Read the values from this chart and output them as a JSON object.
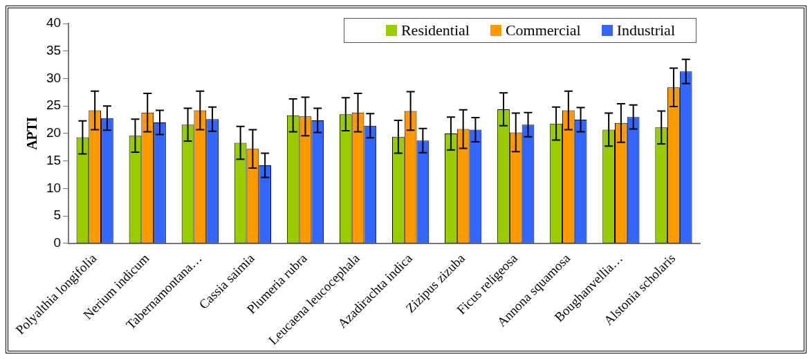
{
  "chart_data": {
    "type": "bar",
    "ylabel": "APTI",
    "categories": [
      "Polyalthia longifolia",
      "Nerium indicum",
      "Tabernamontana…",
      "Cassia saimia",
      "Plumeria rubra",
      "Leucaena leucocephala",
      "Azadirachta indica",
      "Zizipus zizuba",
      "Ficus religeosa",
      "Annona squamosa",
      "Boughanvellia…",
      "Alstonia scholaris"
    ],
    "series": [
      {
        "name": "Residential",
        "color": "#99cc00",
        "values": [
          19.3,
          19.6,
          21.6,
          18.3,
          23.3,
          23.5,
          19.4,
          20.0,
          24.4,
          21.8,
          20.7,
          21.1
        ],
        "errors": [
          3,
          3,
          3,
          3,
          3,
          3,
          3,
          3,
          3,
          3,
          3,
          3
        ]
      },
      {
        "name": "Commercial",
        "color": "#ff9900",
        "values": [
          24.2,
          23.8,
          24.2,
          17.2,
          23.1,
          23.8,
          24.1,
          20.8,
          20.2,
          24.2,
          21.9,
          28.4
        ],
        "errors": [
          3.5,
          3.5,
          3.5,
          3.5,
          3.5,
          3.5,
          3.5,
          3.5,
          3.5,
          3.5,
          3.5,
          3.5
        ]
      },
      {
        "name": "Industrial",
        "color": "#3366ff",
        "values": [
          22.8,
          22.0,
          22.6,
          14.2,
          22.4,
          21.4,
          18.7,
          20.7,
          21.6,
          22.5,
          23.0,
          31.3
        ],
        "errors": [
          2.2,
          2.2,
          2.2,
          2.2,
          2.2,
          2.2,
          2.2,
          2.2,
          2.2,
          2.2,
          2.2,
          2.2
        ]
      }
    ],
    "ylim": [
      0,
      40
    ],
    "yticks": [
      0,
      5,
      10,
      15,
      20,
      25,
      30,
      35,
      40
    ],
    "grid": false,
    "legend": "top right"
  }
}
